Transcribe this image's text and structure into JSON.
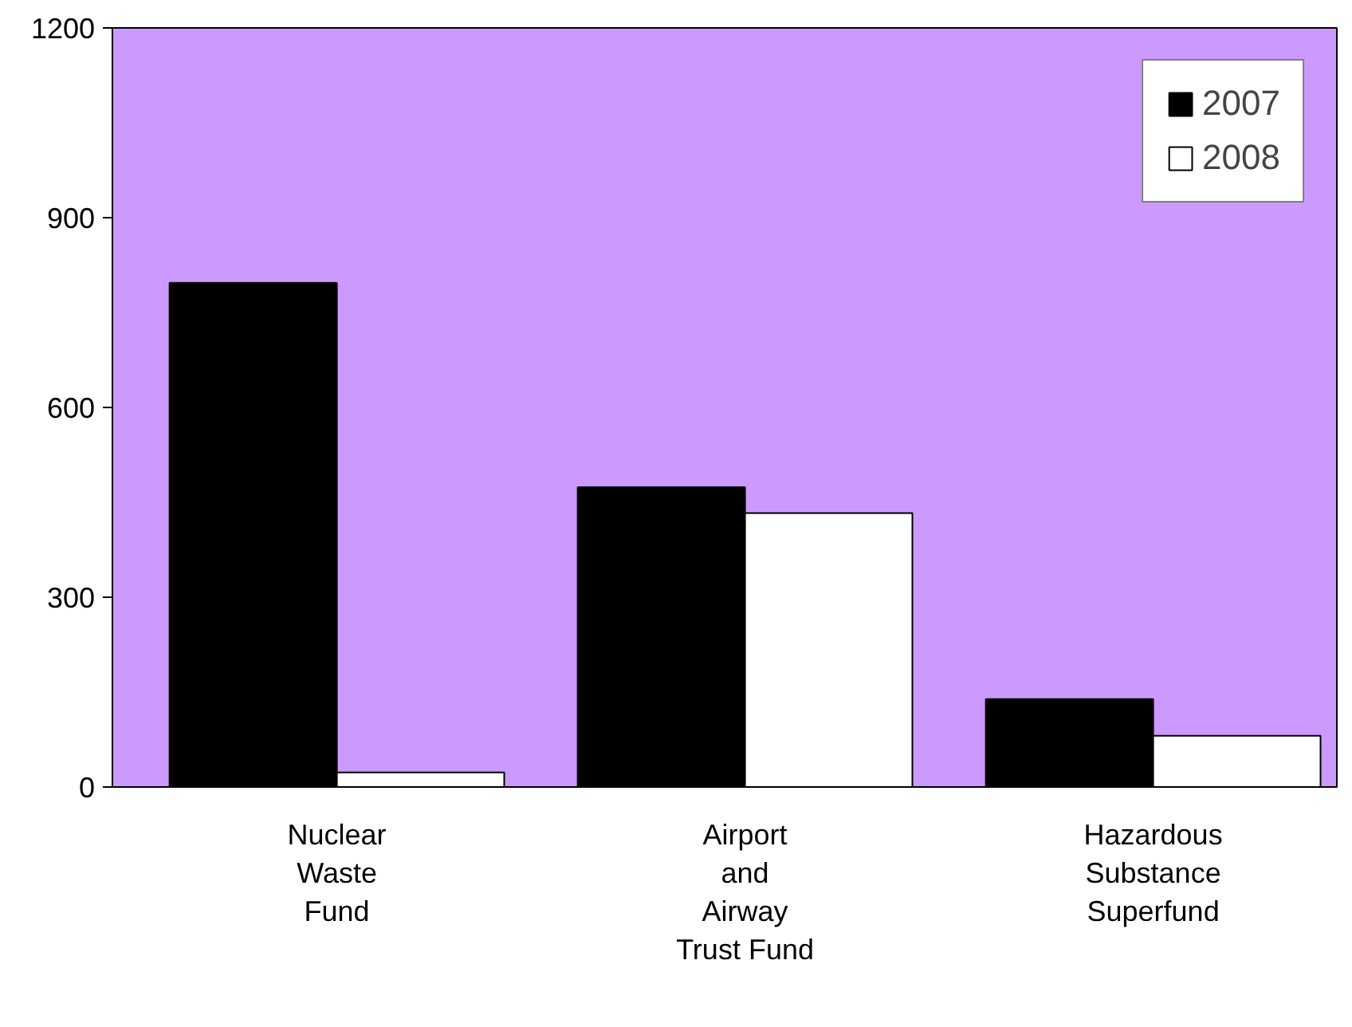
{
  "chart_data": {
    "type": "bar",
    "categories": [
      "Nuclear\nWaste\nFund",
      "Airport\nand\nAirway\nTrust Fund",
      "Hazardous\nSubstance\nSuperfund"
    ],
    "series": [
      {
        "name": "2007",
        "color": "#000000",
        "values": [
          797,
          474,
          139
        ]
      },
      {
        "name": "2008",
        "color": "#ffffff",
        "values": [
          23,
          433,
          81
        ]
      }
    ],
    "ylim": [
      0,
      1200
    ],
    "yticks": [
      0,
      300,
      600,
      900,
      1200
    ],
    "grid": false,
    "legend": "top right"
  }
}
